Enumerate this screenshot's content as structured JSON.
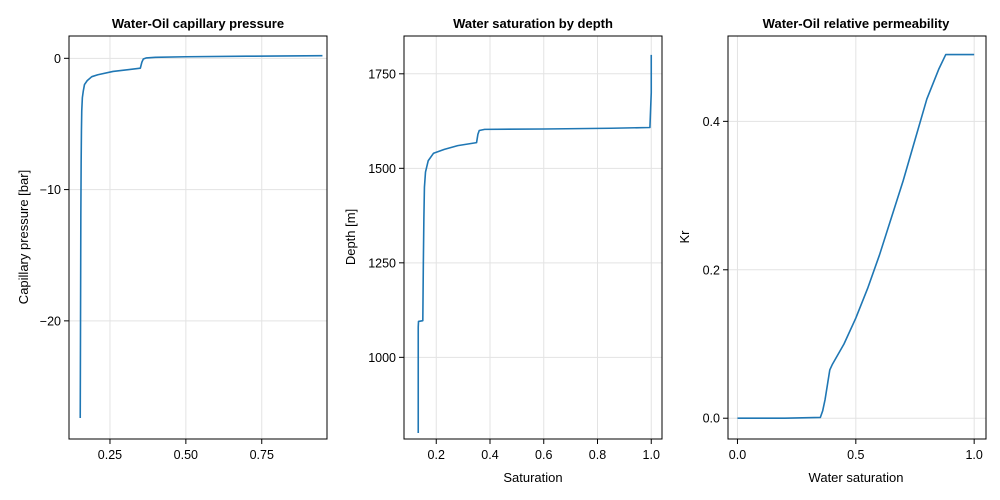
{
  "colors": {
    "series": "#1f77b4",
    "grid": "#e3e3e3",
    "frame": "#000000"
  },
  "chart_data": [
    {
      "type": "line",
      "title": "Water-Oil capillary pressure",
      "xlabel": "",
      "ylabel": "Capillary pressure [bar]",
      "xlim": [
        0.115,
        0.965
      ],
      "ylim": [
        -29,
        1.7
      ],
      "xticks": [
        0.25,
        0.5,
        0.75
      ],
      "xtick_labels": [
        "0.25",
        "0.50",
        "0.75"
      ],
      "yticks": [
        0,
        -10,
        -20
      ],
      "ytick_labels": [
        "0",
        "−10",
        "−20"
      ],
      "grid": true,
      "series": [
        {
          "x": [
            0.152,
            0.153,
            0.154,
            0.155,
            0.156,
            0.157,
            0.159,
            0.162,
            0.166,
            0.175,
            0.19,
            0.21,
            0.26,
            0.35,
            0.355,
            0.36,
            0.37,
            0.4,
            0.5,
            0.7,
            0.95
          ],
          "y": [
            -27.4,
            -20.0,
            -12.0,
            -8.0,
            -5.5,
            -4.0,
            -3.0,
            -2.5,
            -2.0,
            -1.7,
            -1.4,
            -1.25,
            -1.0,
            -0.75,
            -0.3,
            -0.05,
            0.03,
            0.08,
            0.12,
            0.16,
            0.2
          ]
        }
      ]
    },
    {
      "type": "line",
      "title": "Water saturation by depth",
      "xlabel": "Saturation",
      "ylabel": "Depth [m]",
      "xlim": [
        0.08,
        1.04
      ],
      "ylim": [
        784,
        1850
      ],
      "xticks": [
        0.2,
        0.4,
        0.6,
        0.8,
        1.0
      ],
      "xtick_labels": [
        "0.2",
        "0.4",
        "0.6",
        "0.8",
        "1.0"
      ],
      "yticks": [
        1000,
        1250,
        1500,
        1750
      ],
      "ytick_labels": [
        "1000",
        "1250",
        "1500",
        "1750"
      ],
      "grid": true,
      "series": [
        {
          "x": [
            0.133,
            0.133,
            0.134,
            0.15,
            0.152,
            0.154,
            0.156,
            0.16,
            0.17,
            0.19,
            0.23,
            0.28,
            0.35,
            0.355,
            0.36,
            0.38,
            0.6,
            0.85,
            0.995,
            1.0,
            1.0
          ],
          "y": [
            800,
            1080,
            1095,
            1097,
            1250,
            1370,
            1450,
            1490,
            1520,
            1540,
            1550,
            1560,
            1568,
            1590,
            1600,
            1603,
            1604,
            1606,
            1608,
            1700,
            1800
          ]
        }
      ]
    },
    {
      "type": "line",
      "title": "Water-Oil relative permeability",
      "xlabel": "Water saturation",
      "ylabel": "Kr",
      "xlim": [
        -0.04,
        1.05
      ],
      "ylim": [
        -0.028,
        0.515
      ],
      "xticks": [
        0.0,
        0.5,
        1.0
      ],
      "xtick_labels": [
        "0.0",
        "0.5",
        "1.0"
      ],
      "yticks": [
        0.0,
        0.2,
        0.4
      ],
      "ytick_labels": [
        "0.0",
        "0.2",
        "0.4"
      ],
      "grid": true,
      "series": [
        {
          "x": [
            0.0,
            0.2,
            0.35,
            0.36,
            0.37,
            0.38,
            0.39,
            0.4,
            0.45,
            0.5,
            0.55,
            0.6,
            0.65,
            0.7,
            0.75,
            0.8,
            0.85,
            0.88,
            1.0
          ],
          "y": [
            0.0,
            0.0,
            0.001,
            0.01,
            0.025,
            0.045,
            0.065,
            0.072,
            0.1,
            0.135,
            0.175,
            0.22,
            0.27,
            0.32,
            0.375,
            0.43,
            0.47,
            0.49,
            0.49
          ]
        }
      ]
    }
  ]
}
